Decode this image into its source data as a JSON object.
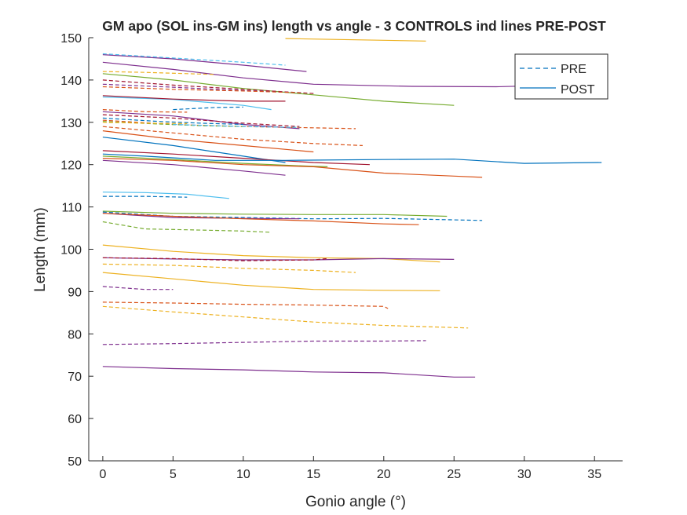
{
  "chart_data": {
    "type": "line",
    "title": "GM apo (SOL ins-GM ins) length vs angle - 3 CONTROLS ind lines PRE-POST",
    "xlabel": "Gonio angle (°)",
    "ylabel": "Length (mm)",
    "xlim": [
      -1,
      37
    ],
    "ylim": [
      50,
      150
    ],
    "xticks": [
      "0",
      "5",
      "10",
      "15",
      "20",
      "25",
      "30",
      "35"
    ],
    "yticks": [
      "50",
      "60",
      "70",
      "80",
      "90",
      "100",
      "110",
      "120",
      "130",
      "140",
      "150"
    ],
    "grid": false,
    "legend": {
      "placement": "top-right",
      "entries": [
        {
          "label": "PRE",
          "style": "dashed",
          "color": "#0072bd"
        },
        {
          "label": "POST",
          "style": "solid",
          "color": "#0072bd"
        }
      ]
    },
    "series": [
      {
        "group": "POST",
        "color": "#edb120",
        "points": [
          [
            13,
            149.8
          ],
          [
            18,
            149.5
          ],
          [
            23,
            149.2
          ]
        ]
      },
      {
        "group": "POST",
        "color": "#7e2f8e",
        "points": [
          [
            0,
            146
          ],
          [
            5,
            145
          ],
          [
            10,
            143.5
          ],
          [
            14.5,
            142
          ]
        ]
      },
      {
        "group": "PRE",
        "color": "#4dbeee",
        "points": [
          [
            0,
            146.2
          ],
          [
            5,
            145.2
          ],
          [
            10,
            144.2
          ],
          [
            13,
            143.5
          ]
        ]
      },
      {
        "group": "POST",
        "color": "#7e2f8e",
        "points": [
          [
            0,
            144.2
          ],
          [
            5,
            142.5
          ],
          [
            10,
            140.5
          ],
          [
            15,
            139
          ],
          [
            22,
            138.5
          ],
          [
            28,
            138.4
          ],
          [
            35,
            139
          ]
        ]
      },
      {
        "group": "PRE",
        "color": "#edb120",
        "points": [
          [
            0,
            142
          ],
          [
            3,
            141.8
          ],
          [
            6,
            141.5
          ],
          [
            8,
            141.3
          ]
        ]
      },
      {
        "group": "POST",
        "color": "#77ac30",
        "points": [
          [
            0,
            141.5
          ],
          [
            5,
            140
          ],
          [
            10,
            138
          ],
          [
            15,
            136.5
          ],
          [
            20,
            135
          ],
          [
            25,
            134
          ]
        ]
      },
      {
        "group": "PRE",
        "color": "#a2142f",
        "points": [
          [
            0,
            140
          ],
          [
            5,
            138.8
          ],
          [
            10,
            137.8
          ],
          [
            15,
            136.8
          ]
        ]
      },
      {
        "group": "PRE",
        "color": "#7e2f8e",
        "points": [
          [
            0,
            139
          ],
          [
            5,
            138.3
          ],
          [
            10,
            137.5
          ],
          [
            14,
            137
          ]
        ]
      },
      {
        "group": "PRE",
        "color": "#d95319",
        "points": [
          [
            0,
            138.4
          ],
          [
            5,
            137.8
          ],
          [
            10,
            137.4
          ],
          [
            14,
            137
          ]
        ]
      },
      {
        "group": "POST",
        "color": "#4dbeee",
        "points": [
          [
            0,
            136
          ],
          [
            5,
            135.4
          ],
          [
            10,
            134
          ],
          [
            12,
            133
          ]
        ]
      },
      {
        "group": "POST",
        "color": "#a2142f",
        "points": [
          [
            0,
            136.3
          ],
          [
            5,
            135.5
          ],
          [
            10,
            135
          ],
          [
            13,
            135
          ]
        ]
      },
      {
        "group": "PRE",
        "color": "#0072bd",
        "points": [
          [
            5,
            133
          ],
          [
            8,
            133.5
          ],
          [
            10,
            133.6
          ]
        ]
      },
      {
        "group": "PRE",
        "color": "#d95319",
        "points": [
          [
            0,
            133
          ],
          [
            3,
            132.5
          ],
          [
            6,
            132.4
          ]
        ]
      },
      {
        "group": "POST",
        "color": "#7e2f8e",
        "points": [
          [
            0,
            132.5
          ],
          [
            5,
            131.5
          ],
          [
            10,
            129.5
          ],
          [
            14,
            128.5
          ]
        ]
      },
      {
        "group": "PRE",
        "color": "#a2142f",
        "points": [
          [
            0,
            131.8
          ],
          [
            5,
            131
          ],
          [
            10,
            129.8
          ],
          [
            14,
            129
          ]
        ]
      },
      {
        "group": "PRE",
        "color": "#0072bd",
        "points": [
          [
            0,
            131
          ],
          [
            4,
            130.2
          ],
          [
            7,
            129.8
          ],
          [
            10,
            129.5
          ]
        ]
      },
      {
        "group": "PRE",
        "color": "#d95319",
        "points": [
          [
            0,
            130.5
          ],
          [
            5,
            129.5
          ],
          [
            10,
            129
          ],
          [
            15,
            128.7
          ],
          [
            18,
            128.5
          ]
        ]
      },
      {
        "group": "PRE",
        "color": "#77ac30",
        "points": [
          [
            0,
            130.2
          ],
          [
            4,
            129.6
          ],
          [
            7,
            129.2
          ],
          [
            10,
            129
          ]
        ]
      },
      {
        "group": "PRE",
        "color": "#edb120",
        "points": [
          [
            0,
            130
          ],
          [
            3,
            129.8
          ],
          [
            6,
            129.7
          ]
        ]
      },
      {
        "group": "PRE",
        "color": "#4dbeee",
        "points": [
          [
            5,
            129.5
          ],
          [
            10,
            129
          ],
          [
            14,
            128.8
          ]
        ]
      },
      {
        "group": "PRE",
        "color": "#d95319",
        "points": [
          [
            0,
            129
          ],
          [
            5,
            127.5
          ],
          [
            10,
            126
          ],
          [
            15,
            125
          ],
          [
            18.5,
            124.5
          ]
        ]
      },
      {
        "group": "POST",
        "color": "#d95319",
        "points": [
          [
            0,
            128
          ],
          [
            5,
            126
          ],
          [
            10,
            124.5
          ],
          [
            15,
            123
          ]
        ]
      },
      {
        "group": "POST",
        "color": "#0072bd",
        "points": [
          [
            0,
            126.5
          ],
          [
            5,
            124.5
          ],
          [
            10,
            122
          ],
          [
            13,
            120.5
          ]
        ]
      },
      {
        "group": "POST",
        "color": "#a2142f",
        "points": [
          [
            0,
            123.3
          ],
          [
            5,
            122.5
          ],
          [
            10,
            121.5
          ],
          [
            15,
            120.5
          ],
          [
            19,
            120
          ]
        ]
      },
      {
        "group": "POST",
        "color": "#0072bd",
        "points": [
          [
            0,
            122.5
          ],
          [
            3,
            122
          ],
          [
            8,
            121
          ],
          [
            13,
            121
          ],
          [
            20,
            121.2
          ],
          [
            25,
            121.3
          ],
          [
            30,
            120.3
          ],
          [
            35.5,
            120.5
          ]
        ]
      },
      {
        "group": "POST",
        "color": "#77ac30",
        "points": [
          [
            0,
            122
          ],
          [
            5,
            121.2
          ],
          [
            10,
            120.3
          ],
          [
            15,
            119.6
          ],
          [
            16,
            119.5
          ]
        ]
      },
      {
        "group": "POST",
        "color": "#d95319",
        "points": [
          [
            0,
            121.5
          ],
          [
            5,
            121
          ],
          [
            10,
            120
          ],
          [
            15,
            119.5
          ],
          [
            20,
            118
          ],
          [
            25,
            117.3
          ],
          [
            27,
            117
          ]
        ]
      },
      {
        "group": "POST",
        "color": "#7e2f8e",
        "points": [
          [
            0,
            121
          ],
          [
            5,
            120
          ],
          [
            10,
            118.5
          ],
          [
            13,
            117.5
          ]
        ]
      },
      {
        "group": "POST",
        "color": "#4dbeee",
        "points": [
          [
            0,
            113.5
          ],
          [
            3,
            113.4
          ],
          [
            6,
            113
          ],
          [
            9,
            112
          ]
        ]
      },
      {
        "group": "PRE",
        "color": "#0072bd",
        "points": [
          [
            0,
            112.5
          ],
          [
            3,
            112.5
          ],
          [
            6,
            112.3
          ]
        ]
      },
      {
        "group": "POST",
        "color": "#77ac30",
        "points": [
          [
            0,
            109
          ],
          [
            5,
            108.5
          ],
          [
            10,
            108.3
          ],
          [
            15,
            108.2
          ],
          [
            20,
            108.2
          ],
          [
            24.5,
            107.8
          ]
        ]
      },
      {
        "group": "PRE",
        "color": "#0072bd",
        "points": [
          [
            0,
            108.8
          ],
          [
            5,
            107.8
          ],
          [
            10,
            107.5
          ],
          [
            15,
            107.2
          ],
          [
            20,
            107.3
          ],
          [
            27,
            106.8
          ]
        ]
      },
      {
        "group": "POST",
        "color": "#7e2f8e",
        "points": [
          [
            0,
            108.5
          ],
          [
            5,
            107.5
          ],
          [
            10,
            107.3
          ],
          [
            14,
            107.2
          ]
        ]
      },
      {
        "group": "POST",
        "color": "#d95319",
        "points": [
          [
            0,
            108.5
          ],
          [
            5,
            107.8
          ],
          [
            10,
            107.2
          ],
          [
            15,
            106.7
          ],
          [
            20,
            106
          ],
          [
            22.5,
            105.8
          ]
        ]
      },
      {
        "group": "PRE",
        "color": "#77ac30",
        "points": [
          [
            0,
            106.5
          ],
          [
            3,
            104.8
          ],
          [
            6,
            104.6
          ],
          [
            10,
            104.3
          ],
          [
            12,
            104
          ]
        ]
      },
      {
        "group": "POST",
        "color": "#edb120",
        "points": [
          [
            0,
            101
          ],
          [
            5,
            99.5
          ],
          [
            10,
            98.5
          ],
          [
            15,
            98
          ],
          [
            20,
            97.8
          ],
          [
            24,
            97
          ]
        ]
      },
      {
        "group": "POST",
        "color": "#7e2f8e",
        "points": [
          [
            0,
            98
          ],
          [
            5,
            97.7
          ],
          [
            10,
            97.5
          ],
          [
            15,
            97.5
          ],
          [
            20,
            97.8
          ],
          [
            25,
            97.6
          ]
        ]
      },
      {
        "group": "PRE",
        "color": "#a2142f",
        "points": [
          [
            0,
            98
          ],
          [
            5,
            97.8
          ],
          [
            10,
            97.3
          ],
          [
            15,
            97.5
          ],
          [
            16,
            97.8
          ]
        ]
      },
      {
        "group": "PRE",
        "color": "#edb120",
        "points": [
          [
            0,
            96.5
          ],
          [
            5,
            96.2
          ],
          [
            10,
            95.5
          ],
          [
            15,
            95
          ],
          [
            18,
            94.5
          ]
        ]
      },
      {
        "group": "POST",
        "color": "#edb120",
        "points": [
          [
            0,
            94.5
          ],
          [
            5,
            93
          ],
          [
            10,
            91.5
          ],
          [
            15,
            90.5
          ],
          [
            20,
            90.3
          ],
          [
            24,
            90.2
          ]
        ]
      },
      {
        "group": "PRE",
        "color": "#7e2f8e",
        "points": [
          [
            0,
            91.2
          ],
          [
            3,
            90.5
          ],
          [
            5,
            90.5
          ]
        ]
      },
      {
        "group": "PRE",
        "color": "#d95319",
        "points": [
          [
            0,
            87.5
          ],
          [
            5,
            87.3
          ],
          [
            10,
            87
          ],
          [
            15,
            86.8
          ],
          [
            20,
            86.5
          ],
          [
            20.3,
            86
          ]
        ]
      },
      {
        "group": "PRE",
        "color": "#edb120",
        "points": [
          [
            0,
            86.5
          ],
          [
            5,
            85.2
          ],
          [
            10,
            84
          ],
          [
            15,
            82.8
          ],
          [
            20,
            82
          ],
          [
            25,
            81.5
          ],
          [
            26,
            81.4
          ]
        ]
      },
      {
        "group": "PRE",
        "color": "#7e2f8e",
        "points": [
          [
            0,
            77.5
          ],
          [
            5,
            77.7
          ],
          [
            10,
            78
          ],
          [
            15,
            78.3
          ],
          [
            20,
            78.3
          ],
          [
            23,
            78.4
          ]
        ]
      },
      {
        "group": "POST",
        "color": "#7e2f8e",
        "points": [
          [
            0,
            72.3
          ],
          [
            5,
            71.8
          ],
          [
            10,
            71.5
          ],
          [
            15,
            71
          ],
          [
            20,
            70.8
          ],
          [
            25,
            69.8
          ],
          [
            26.5,
            69.8
          ]
        ]
      }
    ]
  }
}
